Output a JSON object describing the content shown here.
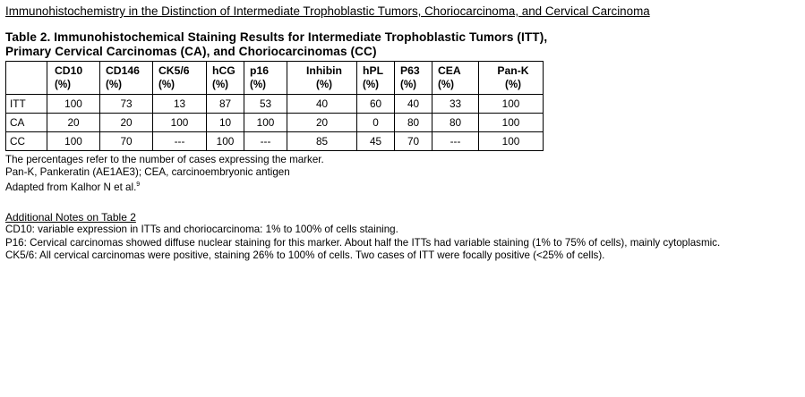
{
  "document": {
    "title": "Immunohistochemistry in the Distinction of Intermediate Trophoblastic Tumors, Choriocarcinoma, and Cervical Carcinoma",
    "table_caption_line1": "Table 2. Immunohistochemical Staining Results for Intermediate Trophoblastic Tumors (ITT),",
    "table_caption_line2": "Primary Cervical Carcinomas (CA), and Choriocarcinomas (CC)",
    "table": {
      "columns": [
        {
          "name": "CD10",
          "unit": "(%)"
        },
        {
          "name": "CD146",
          "unit": "(%)"
        },
        {
          "name": "CK5/6",
          "unit": "(%)"
        },
        {
          "name": "hCG",
          "unit": "(%)"
        },
        {
          "name": "p16",
          "unit": "(%)"
        },
        {
          "name": "Inhibin",
          "unit": "(%)"
        },
        {
          "name": "hPL",
          "unit": "(%)"
        },
        {
          "name": "P63",
          "unit": "(%)"
        },
        {
          "name": "CEA",
          "unit": "(%)"
        },
        {
          "name": "Pan-K",
          "unit": "(%)"
        }
      ],
      "rows": [
        {
          "label": "ITT",
          "values": [
            "100",
            "73",
            "13",
            "87",
            "53",
            "40",
            "60",
            "40",
            "33",
            "100"
          ]
        },
        {
          "label": "CA",
          "values": [
            "20",
            "20",
            "100",
            "10",
            "100",
            "20",
            "0",
            "80",
            "80",
            "100"
          ]
        },
        {
          "label": "CC",
          "values": [
            "100",
            "70",
            "---",
            "100",
            "---",
            "85",
            "45",
            "70",
            "---",
            "100"
          ]
        }
      ]
    },
    "footnotes": {
      "line1": "The percentages refer to the number of cases expressing the marker.",
      "line2": "Pan-K, Pankeratin (AE1AE3); CEA, carcinoembryonic antigen",
      "line3": "Adapted from Kalhor N et al.",
      "ref": "9"
    },
    "additional_notes": {
      "heading": "Additional Notes on Table 2",
      "items": [
        "CD10: variable expression in ITTs and choriocarcinoma: 1% to 100% of cells staining.",
        "P16: Cervical carcinomas showed diffuse nuclear staining for this marker. About half the ITTs had variable staining (1% to 75% of cells), mainly cytoplasmic.",
        "CK5/6: All cervical carcinomas were positive, staining 26% to 100% of cells. Two cases of ITT were focally positive (<25% of cells)."
      ]
    }
  }
}
